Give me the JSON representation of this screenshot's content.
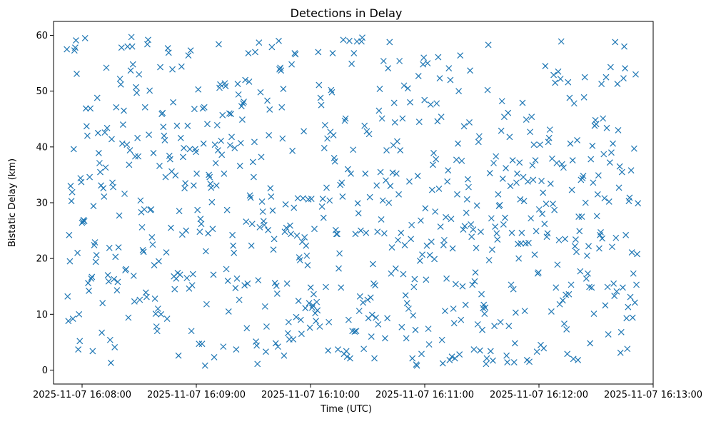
{
  "chart_data": {
    "type": "scatter",
    "title": "Detections in Delay",
    "xlabel": "Time (UTC)",
    "ylabel": "Bistatic Delay (km)",
    "marker": "x",
    "color": "#1f77b4",
    "grid": false,
    "xlim": [
      "2025-11-07 16:07:45",
      "2025-11-07 16:13:00"
    ],
    "ylim": [
      -2.5,
      62.5
    ],
    "x_ticks": [
      "2025-11-07 16:08:00",
      "2025-11-07 16:09:00",
      "2025-11-07 16:10:00",
      "2025-11-07 16:11:00",
      "2025-11-07 16:12:00",
      "2025-11-07 16:13:00"
    ],
    "y_ticks": [
      0,
      10,
      20,
      30,
      40,
      50,
      60
    ],
    "time_window": [
      "2025-11-07 16:07:52",
      "2025-11-07 16:12:52"
    ],
    "points_in_time_order": [
      57.5,
      13.2,
      8.8,
      24.2,
      19.5,
      33.0,
      30.3,
      31.9,
      9.2,
      39.6,
      57.3,
      57.8,
      59.1,
      53.1,
      21.0,
      3.7,
      10.0,
      5.2,
      34.4,
      33.7,
      26.4,
      26.6,
      26.9,
      26.7,
      59.5,
      46.9,
      43.7,
      42.0,
      15.6,
      14.2,
      34.6,
      46.9,
      16.4,
      16.7,
      3.4,
      29.4,
      22.4,
      22.9,
      19.4,
      20.6,
      48.8,
      42.5,
      38.9,
      37.1,
      35.5,
      33.1,
      6.7,
      12.0,
      32.6,
      31.1,
      42.6,
      36.3,
      54.2,
      43.4,
      17.0,
      15.9,
      21.9,
      5.4,
      1.3,
      41.4,
      33.6,
      32.8,
      16.3,
      4.1,
      20.3,
      47.1,
      14.3,
      15.8,
      22.0,
      27.7,
      52.2,
      51.2,
      57.8,
      40.6,
      44.0,
      46.5,
      31.6,
      17.9,
      18.1,
      40.4,
      58.0,
      9.4,
      36.8,
      39.4,
      53.7,
      59.7,
      58.0,
      54.8,
      16.9,
      12.3,
      38.3,
      50.7,
      49.7,
      41.6,
      38.3,
      53.0,
      12.6,
      30.4,
      28.3,
      25.6,
      21.5,
      21.2,
      28.8,
      47.1,
      13.9,
      13.1,
      58.4,
      59.2,
      42.2,
      50.1,
      28.7,
      28.8,
      23.8,
      22.5,
      38.9,
      18.8,
      12.8,
      10.1,
      7.8,
      7.0,
      11.0,
      19.5,
      36.6,
      54.3,
      10.0,
      45.9,
      46.1,
      43.6,
      42.0,
      41.2,
      34.6,
      21.1,
      9.2,
      57.7,
      56.9,
      38.4,
      37.8,
      25.5,
      35.6,
      53.9,
      48.0,
      16.8,
      14.5,
      34.9,
      16.4,
      43.8,
      17.4,
      2.6,
      28.5,
      17.1,
      41.6,
      54.4,
      24.3,
      38.2,
      39.8,
      32.6,
      33.5,
      25.0,
      16.5,
      43.8,
      56.4,
      14.6,
      39.6,
      57.3,
      7.0,
      15.2,
      17.2,
      33.1,
      46.8,
      39.6,
      39.1,
      35.2,
      28.7,
      50.3,
      4.7,
      24.8,
      27.1,
      26.2,
      4.7,
      46.9,
      40.6,
      47.1,
      0.8,
      21.3,
      11.8,
      44.1,
      24.5,
      35.0,
      34.6,
      33.4,
      32.7,
      30.1,
      25.3,
      17.1,
      2.3,
      40.4,
      37.1,
      33.1,
      43.9,
      39.4,
      58.4,
      50.6,
      51.2,
      41.1,
      38.6,
      45.7,
      4.2,
      35.2,
      51.4,
      50.9,
      18.1,
      28.7,
      16.0,
      10.5,
      46.0,
      40.3,
      45.9,
      41.8,
      24.2,
      22.3,
      21.0,
      39.8,
      14.7,
      3.7,
      16.4,
      51.3,
      49.4,
      12.6,
      36.6,
      40.7,
      47.3,
      44.9,
      47.8,
      48.1,
      15.2,
      52.0,
      26.6,
      7.5,
      15.5,
      56.8,
      51.7,
      31.3,
      30.9,
      22.3,
      26.2,
      37.3,
      34.6,
      40.9,
      57.0,
      5.1,
      4.4,
      1.1,
      16.1,
      58.7,
      25.6,
      49.8,
      38.2,
      30.2,
      28.4,
      26.7,
      26.0,
      11.4,
      3.3,
      7.8,
      48.3,
      25.1,
      42.1,
      46.7,
      32.6,
      31.1,
      57.9,
      28.6,
      21.6,
      23.5,
      15.6,
      4.8,
      15.1,
      13.7,
      4.2,
      59.0,
      53.9,
      54.2,
      53.7,
      47.1,
      41.5,
      50.4,
      2.6,
      24.8,
      29.7,
      25.5,
      15.5,
      6.6,
      8.6,
      5.5,
      25.9,
      24.4,
      54.8,
      39.3,
      5.5,
      29.1,
      56.8,
      56.6,
      9.5,
      24.1,
      30.8,
      12.4,
      20.2,
      19.7,
      9.0,
      6.5,
      23.0,
      30.8,
      42.8,
      23.8,
      11.1,
      22.3,
      20.5,
      18.8,
      30.6,
      12.0,
      7.6,
      14.8,
      30.7,
      11.2,
      11.6,
      13.6,
      25.3,
      10.2,
      8.8,
      12.2,
      10.7,
      57.0,
      51.1,
      7.8,
      48.8,
      47.5,
      29.3,
      30.7,
      27.3,
      39.8,
      43.9,
      14.9,
      32.7,
      41.5,
      3.5,
      8.6,
      30.4,
      42.7,
      50.2,
      49.8,
      56.8,
      42.1,
      38.0,
      37.4,
      25.1,
      24.4,
      24.4,
      3.7,
      18.2,
      20.9,
      33.2,
      14.8,
      33.6,
      31.1,
      59.2,
      2.9,
      44.7,
      45.1,
      3.4,
      2.4,
      36.0,
      9.0,
      59.0,
      2.1,
      35.2,
      54.9,
      7.0,
      39.5,
      56.8,
      6.9,
      24.4,
      7.0,
      58.9,
      29.9,
      28.1,
      10.6,
      13.2,
      25.0,
      58.9,
      59.6,
      12.1,
      3.8,
      43.8,
      35.2,
      24.6,
      42.8,
      12.6,
      9.3,
      42.3,
      31.0,
      13.0,
      6.0,
      9.9,
      19.0,
      15.5,
      2.1,
      15.2,
      9.4,
      33.1,
      24.8,
      8.2,
      46.5,
      50.4,
      35.5,
      27.0,
      45.1,
      30.4,
      55.4,
      24.5,
      5.7,
      34.0,
      39.4,
      9.3,
      54.1,
      30.0,
      58.8,
      33.0,
      17.3,
      22.0,
      35.4,
      40.3,
      47.9,
      44.4,
      18.2,
      35.2,
      41.0,
      23.3,
      31.5,
      55.4,
      39.4,
      24.6,
      7.7,
      45.1,
      17.2,
      51.0,
      22.4,
      13.4,
      5.7,
      12.0,
      50.5,
      11.0,
      33.8,
      48.0,
      23.5,
      26.0,
      2.1,
      9.8,
      14.9,
      16.3,
      7.2,
      1.0,
      0.8,
      34.8,
      52.7,
      44.5,
      19.6,
      26.8,
      2.9,
      20.7,
      54.8,
      56.0,
      48.4,
      29.0,
      16.2,
      22.3,
      55.0,
      7.4,
      4.6,
      20.6,
      47.6,
      23.0,
      32.3,
      36.8,
      38.9,
      19.9,
      28.4,
      37.8,
      47.8,
      44.6,
      56.1,
      32.5,
      52.3,
      25.7,
      45.4,
      5.4,
      1.2,
      22.4,
      23.3,
      10.6,
      27.4,
      16.4,
      33.8,
      35.8,
      54.1,
      1.8,
      52.0,
      27.1,
      2.4,
      21.8,
      11.0,
      8.4,
      2.1,
      15.4,
      37.7,
      31.5,
      40.6,
      50.0,
      2.8,
      56.4,
      9.0,
      37.5,
      15.0,
      25.2,
      43.7,
      25.8,
      11.7,
      28.2,
      30.6,
      34.2,
      32.8,
      44.4,
      53.7,
      26.1,
      23.9,
      15.3,
      25.2,
      3.7,
      15.9,
      17.5,
      21.9,
      29.5,
      8.2,
      40.9,
      41.9,
      3.5,
      24.8,
      13.6,
      7.2,
      11.1,
      11.7,
      10.1,
      11.2,
      1.1,
      2.1,
      50.2,
      58.3,
      19.7,
      35.3,
      3.4,
      27.2,
      21.6,
      1.7,
      37.1,
      7.9,
      25.7,
      38.3,
      24.5,
      23.4,
      31.5,
      29.4,
      29.6,
      8.6,
      42.9,
      48.2,
      34.3,
      26.1,
      45.4,
      27.3,
      36.2,
      2.6,
      1.4,
      46.1,
      7.9,
      41.8,
      33.0,
      15.3,
      24.6,
      37.6,
      14.5,
      1.4,
      4.8,
      10.3,
      33.6,
      35.2,
      22.6,
      20.0,
      37.2,
      30.6,
      22.7,
      24.6,
      47.9,
      34.6,
      30.3,
      10.6,
      22.7,
      44.9,
      1.8,
      33.8,
      22.8,
      1.5,
      42.7,
      27.2,
      45.4,
      36.7,
      34.1,
      40.4,
      20.7,
      37.6,
      24.9,
      3.3,
      17.3,
      17.5,
      28.8,
      40.4,
      4.5,
      33.9,
      28.0,
      31.8,
      3.9,
      26.2,
      54.5,
      29.8,
      23.9,
      24.5,
      40.9,
      41.6,
      43.1,
      33.4,
      10.5,
      37.9,
      29.8,
      52.9,
      28.7,
      51.5,
      14.8,
      37.1,
      18.9,
      53.5,
      23.3,
      11.8,
      52.2,
      58.9,
      36.9,
      12.5,
      36.3,
      8.3,
      23.5,
      13.5,
      7.3,
      2.9,
      51.6,
      13.6,
      48.8,
      40.6,
      15.3,
      32.3,
      37.6,
      2.0,
      47.8,
      22.2,
      23.4,
      21.2,
      41.2,
      1.8,
      27.5,
      24.9,
      17.7,
      34.1,
      27.5,
      34.4,
      34.8,
      48.9,
      52.5,
      30.0,
      16.4,
      20.5,
      17.3,
      22.2,
      14.9,
      4.8,
      37.8,
      14.8,
      40.2,
      33.6,
      10.1,
      43.8,
      44.8,
      44.1,
      27.6,
      31.5,
      34.9,
      21.8,
      24.2,
      24.7,
      51.3,
      23.6,
      45.1,
      38.7,
      30.8,
      11.6,
      52.5,
      43.4,
      14.9,
      6.4,
      30.2,
      37.2,
      54.3,
      39.0,
      22.1,
      40.6,
      15.5,
      13.3,
      58.8,
      23.7,
      14.1,
      51.3,
      43.0,
      32.7,
      36.5,
      3.1,
      6.8,
      35.5,
      14.8,
      52.3,
      58.0,
      54.1,
      24.2,
      9.3,
      3.8,
      11.3,
      30.3,
      30.9,
      13.1,
      35.8,
      21.1,
      9.4,
      17.3,
      39.7,
      12.1,
      53.0,
      15.3,
      20.8,
      29.9
    ]
  }
}
